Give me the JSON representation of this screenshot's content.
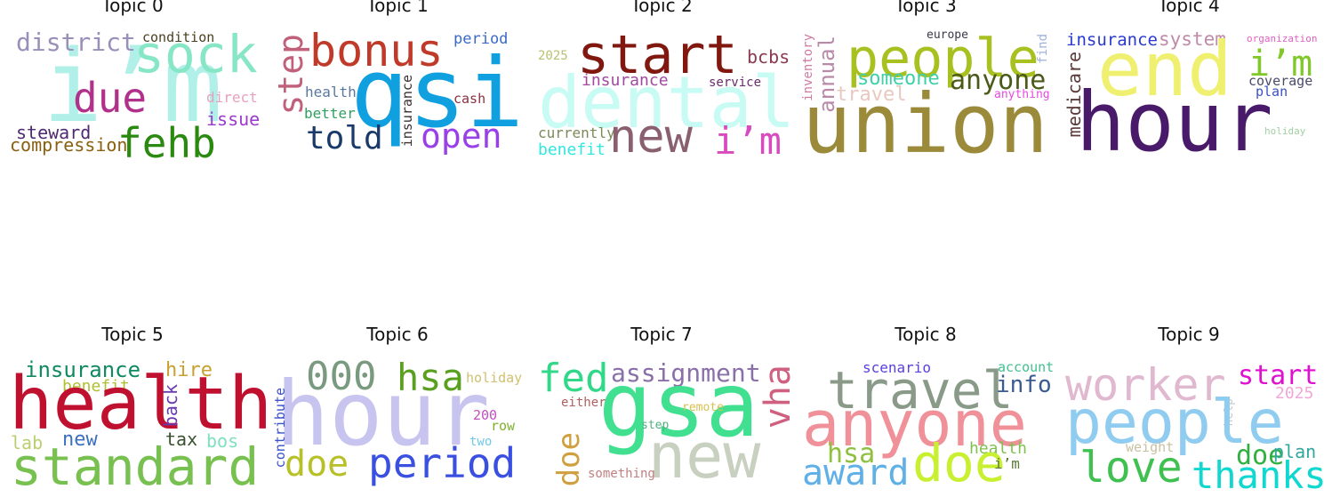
{
  "topics": [
    {
      "title": "Topic 0",
      "words": [
        {
          "text": "i’m",
          "color": "#b0f0e8"
        },
        {
          "text": "sock",
          "color": "#86e6c6"
        },
        {
          "text": "district",
          "color": "#9a8fb8"
        },
        {
          "text": "condition",
          "color": "#4a4020"
        },
        {
          "text": "due",
          "color": "#b0308a"
        },
        {
          "text": "direct",
          "color": "#e8a0c0"
        },
        {
          "text": "issue",
          "color": "#9a3ad0"
        },
        {
          "text": "steward",
          "color": "#502a70"
        },
        {
          "text": "compression",
          "color": "#8a6010"
        },
        {
          "text": "fehb",
          "color": "#2a8a10"
        }
      ]
    },
    {
      "title": "Topic 1",
      "words": [
        {
          "text": "step",
          "color": "#c0607a"
        },
        {
          "text": "bonus",
          "color": "#c03a2a"
        },
        {
          "text": "period",
          "color": "#3a6ac8"
        },
        {
          "text": "qsi",
          "color": "#10a0e0"
        },
        {
          "text": "health",
          "color": "#5a78a0"
        },
        {
          "text": "better",
          "color": "#30a060"
        },
        {
          "text": "insurance",
          "color": "#3a3030"
        },
        {
          "text": "cash",
          "color": "#8a3040"
        },
        {
          "text": "told",
          "color": "#1a3a6a"
        },
        {
          "text": "open",
          "color": "#9a40e8"
        }
      ]
    },
    {
      "title": "Topic 2",
      "words": [
        {
          "text": "start",
          "color": "#801810"
        },
        {
          "text": "2025",
          "color": "#b8c070"
        },
        {
          "text": "bcbs",
          "color": "#8a3a50"
        },
        {
          "text": "dental",
          "color": "#c8fbf4"
        },
        {
          "text": "insurance",
          "color": "#a04aa0"
        },
        {
          "text": "service",
          "color": "#6a2a6a"
        },
        {
          "text": "currently",
          "color": "#7a8a5a"
        },
        {
          "text": "new",
          "color": "#8a6070"
        },
        {
          "text": "i’m",
          "color": "#d84ac0"
        },
        {
          "text": "benefit",
          "color": "#30e8e0"
        }
      ]
    },
    {
      "title": "Topic 3",
      "words": [
        {
          "text": "inventory",
          "color": "#d07aa0"
        },
        {
          "text": "annual",
          "color": "#b88aa8"
        },
        {
          "text": "europe",
          "color": "#3a3a4a"
        },
        {
          "text": "people",
          "color": "#a8c020"
        },
        {
          "text": "find",
          "color": "#a0b0e0"
        },
        {
          "text": "someone",
          "color": "#40d0a8"
        },
        {
          "text": "anyone",
          "color": "#4a5a1a"
        },
        {
          "text": "travel",
          "color": "#e8c8c0"
        },
        {
          "text": "anything",
          "color": "#e84ae0"
        },
        {
          "text": "union",
          "color": "#9a8a3a"
        }
      ]
    },
    {
      "title": "Topic 4",
      "words": [
        {
          "text": "insurance",
          "color": "#2a3ad0"
        },
        {
          "text": "system",
          "color": "#c08aa8"
        },
        {
          "text": "organization",
          "color": "#e060c0"
        },
        {
          "text": "end",
          "color": "#f0f070"
        },
        {
          "text": "i’m",
          "color": "#80c828"
        },
        {
          "text": "medicare",
          "color": "#5a3a3a"
        },
        {
          "text": "coverage",
          "color": "#4a4a6a"
        },
        {
          "text": "plan",
          "color": "#3a50c0"
        },
        {
          "text": "hour",
          "color": "#4a1a6a"
        },
        {
          "text": "holiday",
          "color": "#a0d0a0"
        }
      ]
    },
    {
      "title": "Topic 5",
      "words": [
        {
          "text": "insurance",
          "color": "#108a60"
        },
        {
          "text": "hire",
          "color": "#c8a030"
        },
        {
          "text": "benefit",
          "color": "#b0c030"
        },
        {
          "text": "health",
          "color": "#c01030"
        },
        {
          "text": "back",
          "color": "#6a3ab0"
        },
        {
          "text": "lab",
          "color": "#b8d070"
        },
        {
          "text": "new",
          "color": "#3a70c0"
        },
        {
          "text": "tax",
          "color": "#3a5030"
        },
        {
          "text": "bos",
          "color": "#80e0c0"
        },
        {
          "text": "standard",
          "color": "#78c050"
        }
      ]
    },
    {
      "title": "Topic 6",
      "words": [
        {
          "text": "000",
          "color": "#7a9a80"
        },
        {
          "text": "hsa",
          "color": "#5aa020"
        },
        {
          "text": "holiday",
          "color": "#d0c070"
        },
        {
          "text": "hour",
          "color": "#c8c4f0"
        },
        {
          "text": "contribute",
          "color": "#3a50c8"
        },
        {
          "text": "200",
          "color": "#c050c0"
        },
        {
          "text": "row",
          "color": "#80b030"
        },
        {
          "text": "two",
          "color": "#70c8e8"
        },
        {
          "text": "doe",
          "color": "#b8c028"
        },
        {
          "text": "period",
          "color": "#3a50e0"
        }
      ]
    },
    {
      "title": "Topic 7",
      "words": [
        {
          "text": "fed",
          "color": "#30d888"
        },
        {
          "text": "assignment",
          "color": "#8a70a8"
        },
        {
          "text": "vha",
          "color": "#d06080"
        },
        {
          "text": "either",
          "color": "#b06060"
        },
        {
          "text": "gsa",
          "color": "#40e090"
        },
        {
          "text": "remote",
          "color": "#d8c050"
        },
        {
          "text": "step",
          "color": "#50b080"
        },
        {
          "text": "doe",
          "color": "#d0a040"
        },
        {
          "text": "something",
          "color": "#c08080"
        },
        {
          "text": "new",
          "color": "#c8d0c0"
        }
      ]
    },
    {
      "title": "Topic 8",
      "words": [
        {
          "text": "scenario",
          "color": "#5a40e0"
        },
        {
          "text": "account",
          "color": "#40c090"
        },
        {
          "text": "travel",
          "color": "#8a9a88"
        },
        {
          "text": "info",
          "color": "#3a5a90"
        },
        {
          "text": "anyone",
          "color": "#f09098"
        },
        {
          "text": "hsa",
          "color": "#90c040"
        },
        {
          "text": "health",
          "color": "#80c050"
        },
        {
          "text": "award",
          "color": "#60b0e8"
        },
        {
          "text": "doe",
          "color": "#c8f030"
        },
        {
          "text": "i’m",
          "color": "#5a7a3a"
        }
      ]
    },
    {
      "title": "Topic 9",
      "words": [
        {
          "text": "worker",
          "color": "#e0b8d0"
        },
        {
          "text": "start",
          "color": "#e010d0"
        },
        {
          "text": "2025",
          "color": "#f0a8d8"
        },
        {
          "text": "help",
          "color": "#c8c8c8"
        },
        {
          "text": "people",
          "color": "#90ccf0"
        },
        {
          "text": "weight",
          "color": "#c8c0a0"
        },
        {
          "text": "doe",
          "color": "#30b040"
        },
        {
          "text": "plan",
          "color": "#30a8a0"
        },
        {
          "text": "love",
          "color": "#40c050"
        },
        {
          "text": "thanks",
          "color": "#10d8d0"
        }
      ]
    }
  ]
}
